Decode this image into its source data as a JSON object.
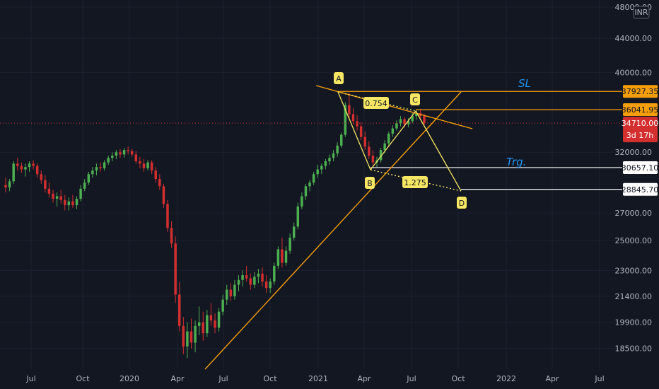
{
  "currency": "INR",
  "colors": {
    "background": "#131722",
    "up": "#26a69a",
    "up_fill": "#4caf50",
    "down": "#ef5350",
    "down_fill": "#d32f2f",
    "pattern": "#f5e663",
    "level_orange": "#f59e0b",
    "level_white": "#ffffff",
    "annotation_text": "#2196f3",
    "price_badge": "#d32f2f"
  },
  "chart_data": {
    "type": "candlestick",
    "y_axis": {
      "ticks": [
        "48000.00",
        "44000.00",
        "40000.00",
        "32000.00",
        "27000.00",
        "25000.00",
        "23000.00",
        "21400.00",
        "19900.00",
        "18500.00"
      ],
      "ylim": [
        17700,
        48000
      ],
      "scale": "log"
    },
    "x_axis": {
      "ticks": [
        "Jul",
        "Oct",
        "2020",
        "Apr",
        "Jul",
        "Oct",
        "2021",
        "Apr",
        "Jul",
        "Oct",
        "2022",
        "Apr",
        "Jul"
      ]
    },
    "candles_ohlc": [
      [
        29200,
        29800,
        28600,
        29000
      ],
      [
        29000,
        29700,
        28700,
        29500
      ],
      [
        29500,
        31200,
        29300,
        31000
      ],
      [
        31000,
        31500,
        30400,
        30800
      ],
      [
        30800,
        31100,
        30200,
        30500
      ],
      [
        30500,
        31000,
        29900,
        30700
      ],
      [
        30700,
        31200,
        30300,
        31000
      ],
      [
        31000,
        31300,
        30500,
        30800
      ],
      [
        30800,
        31000,
        29800,
        30100
      ],
      [
        30100,
        30400,
        29300,
        29600
      ],
      [
        29600,
        30000,
        28600,
        28900
      ],
      [
        28900,
        29400,
        28200,
        28500
      ],
      [
        28500,
        28800,
        27800,
        28100
      ],
      [
        28100,
        28600,
        27500,
        28300
      ],
      [
        28300,
        28800,
        27700,
        28000
      ],
      [
        28000,
        28400,
        27200,
        27600
      ],
      [
        27600,
        28200,
        27200,
        27900
      ],
      [
        27900,
        28400,
        27400,
        27600
      ],
      [
        27600,
        28300,
        27300,
        28100
      ],
      [
        28100,
        29200,
        27900,
        28900
      ],
      [
        28900,
        29700,
        28700,
        29400
      ],
      [
        29400,
        30300,
        29200,
        30100
      ],
      [
        30100,
        30700,
        29800,
        30400
      ],
      [
        30400,
        31000,
        30000,
        30700
      ],
      [
        30700,
        31100,
        30300,
        30600
      ],
      [
        30600,
        31300,
        30400,
        31100
      ],
      [
        31100,
        31700,
        30900,
        31500
      ],
      [
        31500,
        32000,
        31200,
        31700
      ],
      [
        31700,
        32200,
        31400,
        32000
      ],
      [
        32000,
        32300,
        31500,
        31800
      ],
      [
        31800,
        32400,
        31500,
        32200
      ],
      [
        32200,
        32500,
        31800,
        32100
      ],
      [
        32100,
        32300,
        31600,
        31800
      ],
      [
        31800,
        32100,
        31000,
        31200
      ],
      [
        31200,
        31600,
        30600,
        31000
      ],
      [
        31000,
        31400,
        30300,
        30600
      ],
      [
        30600,
        31300,
        30400,
        31100
      ],
      [
        31100,
        31300,
        30100,
        30400
      ],
      [
        30400,
        30700,
        29400,
        29700
      ],
      [
        29700,
        30100,
        28800,
        29100
      ],
      [
        29100,
        29300,
        27400,
        27700
      ],
      [
        27700,
        28000,
        25600,
        25900
      ],
      [
        25900,
        26400,
        24500,
        24800
      ],
      [
        24800,
        25300,
        21000,
        21500
      ],
      [
        21500,
        22300,
        19400,
        19700
      ],
      [
        19700,
        20200,
        18200,
        18600
      ],
      [
        18600,
        19900,
        18000,
        19400
      ],
      [
        19400,
        20100,
        18500,
        18800
      ],
      [
        18800,
        20000,
        18300,
        19700
      ],
      [
        19700,
        20800,
        19200,
        19900
      ],
      [
        19900,
        20500,
        18900,
        19300
      ],
      [
        19300,
        20600,
        19100,
        20300
      ],
      [
        20300,
        21000,
        19700,
        20000
      ],
      [
        20000,
        20400,
        19300,
        19600
      ],
      [
        19600,
        20700,
        19400,
        20500
      ],
      [
        20500,
        21500,
        20300,
        21200
      ],
      [
        21200,
        22100,
        20900,
        21800
      ],
      [
        21800,
        22200,
        21100,
        21400
      ],
      [
        21400,
        22400,
        21200,
        22100
      ],
      [
        22100,
        22700,
        21700,
        22400
      ],
      [
        22400,
        23000,
        22000,
        22700
      ],
      [
        22700,
        23300,
        22300,
        22500
      ],
      [
        22500,
        22800,
        21800,
        22100
      ],
      [
        22100,
        22900,
        21900,
        22600
      ],
      [
        22600,
        23100,
        22200,
        22800
      ],
      [
        22800,
        23200,
        22000,
        22300
      ],
      [
        22300,
        22700,
        21600,
        21900
      ],
      [
        21900,
        22500,
        21600,
        22300
      ],
      [
        22300,
        23500,
        22100,
        23300
      ],
      [
        23300,
        24600,
        23100,
        24400
      ],
      [
        24400,
        25200,
        23200,
        23500
      ],
      [
        23500,
        24600,
        23300,
        24300
      ],
      [
        24300,
        25500,
        24100,
        25200
      ],
      [
        25200,
        26300,
        25000,
        26000
      ],
      [
        26000,
        27800,
        25800,
        27500
      ],
      [
        27500,
        28600,
        27300,
        28300
      ],
      [
        28300,
        29300,
        28000,
        29100
      ],
      [
        29100,
        29600,
        28700,
        29400
      ],
      [
        29400,
        30300,
        29200,
        30100
      ],
      [
        30100,
        30900,
        29800,
        30500
      ],
      [
        30500,
        31000,
        30100,
        30800
      ],
      [
        30800,
        31400,
        30500,
        31200
      ],
      [
        31200,
        31800,
        30900,
        31500
      ],
      [
        31500,
        32200,
        31200,
        31900
      ],
      [
        31900,
        32900,
        31600,
        32600
      ],
      [
        32600,
        33800,
        32400,
        33600
      ],
      [
        33600,
        36800,
        33400,
        36500
      ],
      [
        36500,
        37800,
        35000,
        35600
      ],
      [
        35600,
        36200,
        34600,
        34900
      ],
      [
        34900,
        35500,
        34000,
        34400
      ],
      [
        34400,
        34800,
        33100,
        33400
      ],
      [
        33400,
        33900,
        32200,
        32500
      ],
      [
        32500,
        33000,
        31400,
        31700
      ],
      [
        31700,
        32200,
        30800,
        31100
      ],
      [
        31100,
        31600,
        30700,
        31300
      ],
      [
        31300,
        32400,
        31100,
        32200
      ],
      [
        32200,
        33100,
        31900,
        32800
      ],
      [
        32800,
        33900,
        32600,
        33700
      ],
      [
        33700,
        34500,
        33400,
        34200
      ],
      [
        34200,
        35000,
        34000,
        34700
      ],
      [
        34700,
        35400,
        34400,
        35100
      ],
      [
        35100,
        35300,
        34300,
        34600
      ],
      [
        34600,
        35200,
        34300,
        34900
      ],
      [
        34900,
        35700,
        34700,
        35400
      ],
      [
        35400,
        36000,
        35000,
        35700
      ],
      [
        35700,
        36100,
        35200,
        35400
      ],
      [
        35400,
        35600,
        34500,
        34710
      ]
    ],
    "levels": [
      {
        "label": "37927.35",
        "value": 37927.35,
        "color": "orange"
      },
      {
        "label": "36041.95",
        "value": 36041.95,
        "color": "orange"
      },
      {
        "label": "30657.10",
        "value": 30657.1,
        "color": "white"
      },
      {
        "label": "28845.70",
        "value": 28845.7,
        "color": "white"
      }
    ],
    "current_price": {
      "label": "34710.00",
      "countdown": "3d 17h"
    },
    "pattern_points": {
      "A": "A",
      "B": "B",
      "C": "C",
      "D": "D"
    },
    "fib_labels": [
      "0.754",
      "1.275"
    ],
    "annotations": {
      "sl": "SL",
      "target": "Trg."
    }
  }
}
